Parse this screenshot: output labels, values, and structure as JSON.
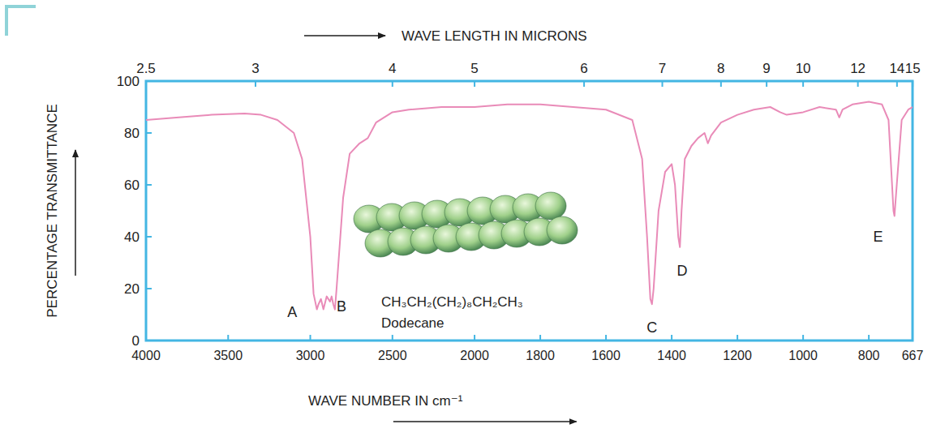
{
  "chart_data": {
    "type": "line",
    "color": "#e98bb8",
    "xlabel": "WAVE NUMBER IN cm⁻¹",
    "x2label": "WAVE LENGTH IN MICRONS",
    "ylabel": "PERCENTAGE TRANSMITTANCE",
    "xlim": [
      4000,
      667
    ],
    "x_scale_change": 2000,
    "xticks": [
      4000,
      3500,
      3000,
      2500,
      2000,
      1800,
      1600,
      1400,
      1200,
      1000,
      800,
      667
    ],
    "x2ticks": [
      2.5,
      3,
      4,
      5,
      6,
      7,
      8,
      9,
      10,
      12,
      14,
      15
    ],
    "ylim": [
      0,
      100
    ],
    "yticks": [
      0,
      20,
      40,
      60,
      80,
      100
    ],
    "grid": false,
    "formula": "CH₃CH₂(CH₂)₈CH₂CH₃",
    "compound": "Dodecane",
    "annotations": [
      {
        "text": "A",
        "x": 3110,
        "y": 11
      },
      {
        "text": "B",
        "x": 2810,
        "y": 13
      },
      {
        "text": "C",
        "x": 1460,
        "y": 5
      },
      {
        "text": "D",
        "x": 1368,
        "y": 27
      },
      {
        "text": "E",
        "x": 772,
        "y": 40
      }
    ],
    "x": [
      4000,
      3800,
      3600,
      3400,
      3300,
      3200,
      3100,
      3050,
      3000,
      2980,
      2960,
      2950,
      2935,
      2920,
      2900,
      2880,
      2870,
      2860,
      2850,
      2840,
      2800,
      2760,
      2700,
      2650,
      2600,
      2500,
      2400,
      2200,
      2000,
      1900,
      1800,
      1700,
      1600,
      1520,
      1490,
      1475,
      1465,
      1460,
      1455,
      1440,
      1420,
      1400,
      1390,
      1380,
      1375,
      1370,
      1360,
      1340,
      1320,
      1300,
      1290,
      1280,
      1250,
      1200,
      1150,
      1100,
      1070,
      1050,
      1000,
      950,
      900,
      890,
      880,
      850,
      800,
      760,
      740,
      725,
      722,
      715,
      700,
      680,
      667
    ],
    "values": [
      85,
      86,
      87,
      87.5,
      87,
      85,
      80,
      70,
      40,
      18,
      12,
      14,
      16,
      12,
      17,
      15,
      17,
      14,
      12,
      20,
      55,
      72,
      76,
      78,
      84,
      88,
      89,
      90,
      90,
      91,
      91,
      90,
      89,
      85,
      70,
      40,
      16,
      14,
      20,
      50,
      65,
      68,
      60,
      40,
      36,
      50,
      70,
      75,
      78,
      80,
      76,
      79,
      84,
      87,
      89,
      90,
      88,
      87,
      88,
      90,
      89,
      86,
      89,
      91,
      92,
      91,
      85,
      50,
      48,
      60,
      85,
      89,
      90
    ]
  }
}
